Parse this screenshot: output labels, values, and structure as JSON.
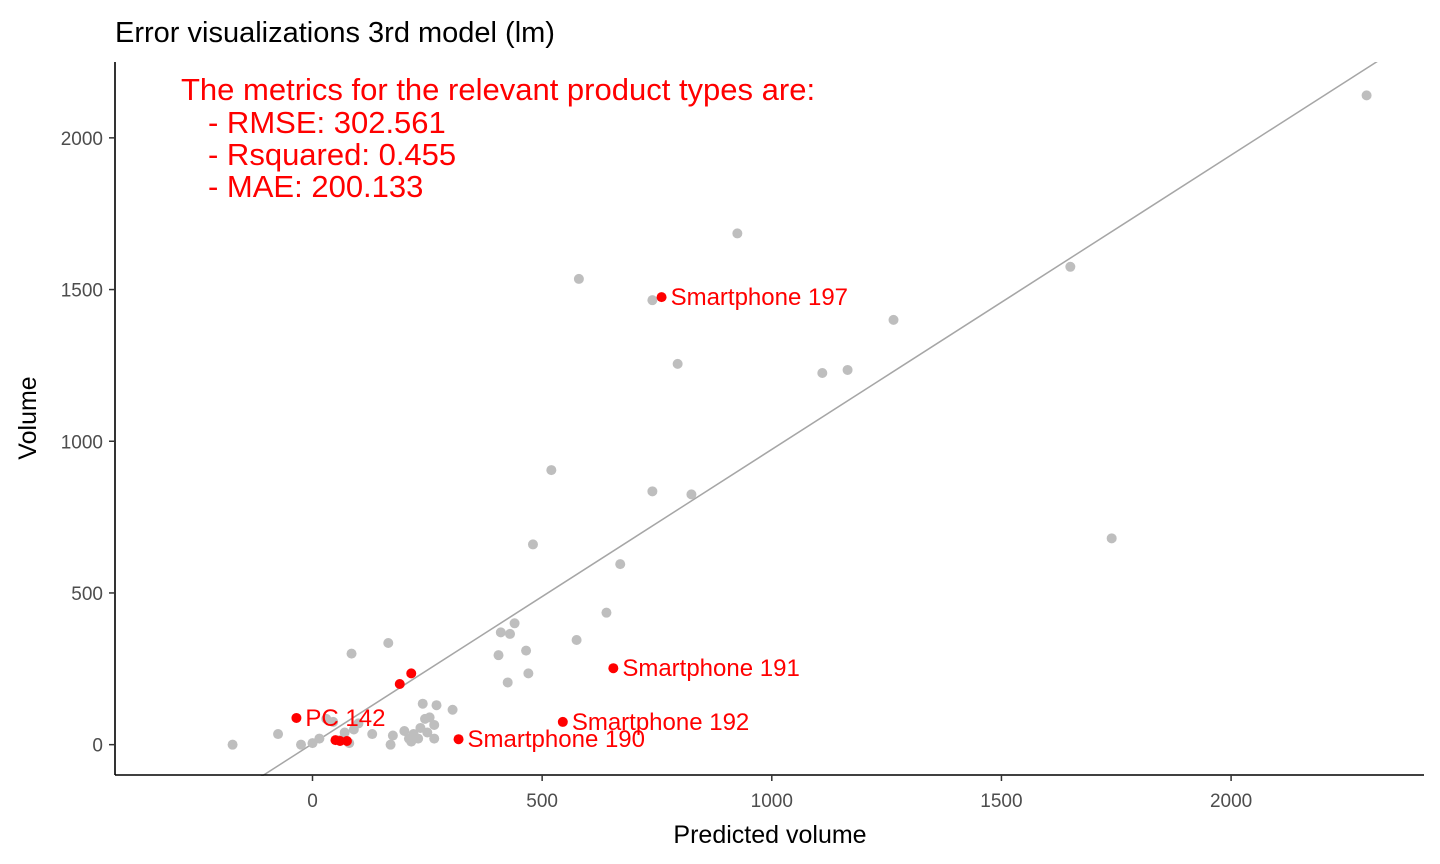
{
  "colors": {
    "background": "#ffffff",
    "axis_line": "#000000",
    "tick_label": "#4d4d4d",
    "points_other": "#bebebe",
    "points_highlight": "#ff0000",
    "label_text": "#ff0000",
    "fit_line": "#a6a6a6"
  },
  "chart_data": {
    "type": "scatter",
    "title": "Error visualizations 3rd model (lm)",
    "xlabel": "Predicted volume",
    "ylabel": "Volume",
    "xlim": [
      -430,
      2420
    ],
    "ylim": [
      -100,
      2250
    ],
    "xticks": [
      0,
      500,
      1000,
      1500,
      2000
    ],
    "yticks": [
      0,
      500,
      1000,
      1500,
      2000
    ],
    "grid": false,
    "legend": "none",
    "annotation": {
      "title": "The metrics for the relevant product types are:",
      "lines": [
        "- RMSE: 302.561",
        "- Rsquared: 0.455",
        "- MAE: 200.133"
      ]
    },
    "reference_line": {
      "slope": 0.97,
      "intercept": 3.1,
      "description": "diagonal fit line"
    },
    "series": [
      {
        "role": "other",
        "points": [
          [
            -174,
            0
          ],
          [
            -75,
            35
          ],
          [
            -25,
            0
          ],
          [
            0,
            5
          ],
          [
            15,
            20
          ],
          [
            30,
            85
          ],
          [
            45,
            75
          ],
          [
            60,
            15
          ],
          [
            70,
            40
          ],
          [
            80,
            5
          ],
          [
            85,
            300
          ],
          [
            90,
            50
          ],
          [
            100,
            70
          ],
          [
            130,
            35
          ],
          [
            165,
            335
          ],
          [
            170,
            0
          ],
          [
            175,
            30
          ],
          [
            200,
            45
          ],
          [
            210,
            20
          ],
          [
            215,
            10
          ],
          [
            220,
            35
          ],
          [
            230,
            20
          ],
          [
            235,
            55
          ],
          [
            240,
            135
          ],
          [
            245,
            85
          ],
          [
            250,
            40
          ],
          [
            255,
            90
          ],
          [
            265,
            65
          ],
          [
            265,
            20
          ],
          [
            270,
            130
          ],
          [
            305,
            115
          ],
          [
            405,
            295
          ],
          [
            410,
            370
          ],
          [
            425,
            205
          ],
          [
            430,
            365
          ],
          [
            440,
            400
          ],
          [
            465,
            310
          ],
          [
            470,
            235
          ],
          [
            480,
            660
          ],
          [
            520,
            905
          ],
          [
            575,
            345
          ],
          [
            580,
            1535
          ],
          [
            640,
            435
          ],
          [
            670,
            595
          ],
          [
            740,
            835
          ],
          [
            740,
            1465
          ],
          [
            795,
            1255
          ],
          [
            825,
            825
          ],
          [
            925,
            1685
          ],
          [
            1110,
            1225
          ],
          [
            1165,
            1235
          ],
          [
            1265,
            1400
          ],
          [
            1650,
            1575
          ],
          [
            1740,
            680
          ],
          [
            2295,
            2140
          ]
        ]
      },
      {
        "role": "highlight",
        "points": [
          [
            -35,
            88
          ],
          [
            50,
            15
          ],
          [
            60,
            12
          ],
          [
            75,
            12
          ],
          [
            190,
            200
          ],
          [
            215,
            235
          ],
          [
            318,
            18
          ],
          [
            545,
            75
          ],
          [
            655,
            252
          ],
          [
            760,
            1475
          ]
        ]
      }
    ],
    "point_labels": [
      {
        "x": -35,
        "y": 88,
        "text": "PC 142"
      },
      {
        "x": 318,
        "y": 18,
        "text": "Smartphone 190"
      },
      {
        "x": 545,
        "y": 75,
        "text": "Smartphone 192"
      },
      {
        "x": 655,
        "y": 252,
        "text": "Smartphone 191"
      },
      {
        "x": 760,
        "y": 1475,
        "text": "Smartphone 197"
      }
    ]
  }
}
